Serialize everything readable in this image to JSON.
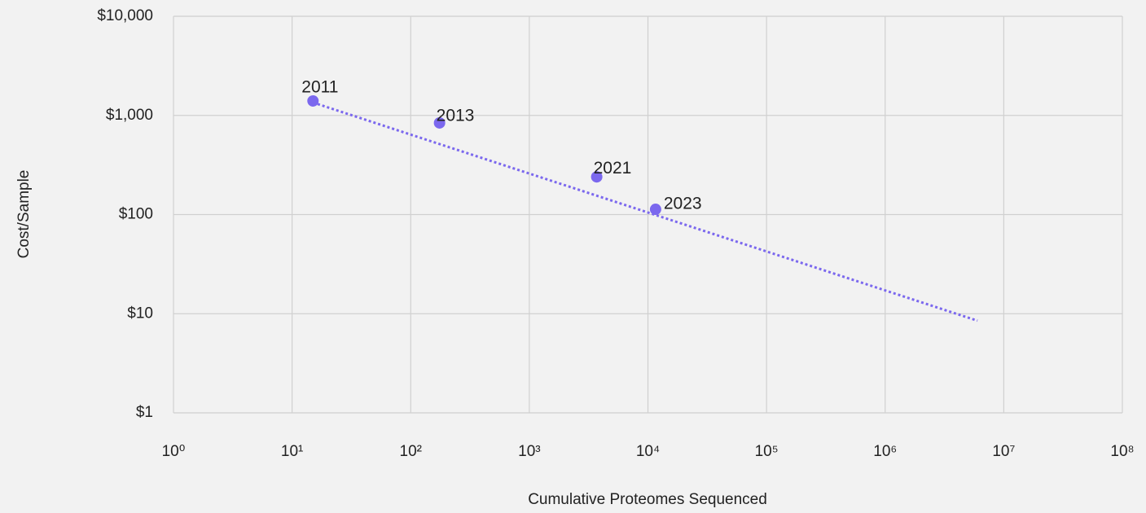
{
  "chart_data": {
    "type": "scatter",
    "xlabel": "Cumulative Proteomes Sequenced",
    "ylabel": "Cost/Sample",
    "x": [
      15,
      175,
      3700,
      11600
    ],
    "values": [
      1400,
      840,
      240,
      113
    ],
    "labels": [
      "2011",
      "2013",
      "2021",
      "2023"
    ],
    "color": "#7b68ee",
    "trendline": {
      "x": [
        15,
        6000000
      ],
      "values": [
        1350,
        8.5
      ],
      "color": "#7b68ee"
    },
    "xlog": true,
    "ylog": true,
    "grid": true,
    "xlim": [
      1,
      100000000
    ],
    "ylim": [
      1,
      10000
    ],
    "xticks": [
      {
        "value": 1,
        "label": "10⁰"
      },
      {
        "value": 10,
        "label": "10¹"
      },
      {
        "value": 100,
        "label": "10²"
      },
      {
        "value": 1000,
        "label": "10³"
      },
      {
        "value": 10000,
        "label": "10⁴"
      },
      {
        "value": 100000,
        "label": "10⁵"
      },
      {
        "value": 1000000,
        "label": "10⁶"
      },
      {
        "value": 10000000,
        "label": "10⁷"
      },
      {
        "value": 100000000,
        "label": "10⁸"
      }
    ],
    "yticks": [
      {
        "value": 1,
        "label": "$1"
      },
      {
        "value": 10,
        "label": "$10"
      },
      {
        "value": 100,
        "label": "$100"
      },
      {
        "value": 1000,
        "label": "$1,000"
      },
      {
        "value": 10000,
        "label": "$10,000"
      }
    ]
  }
}
